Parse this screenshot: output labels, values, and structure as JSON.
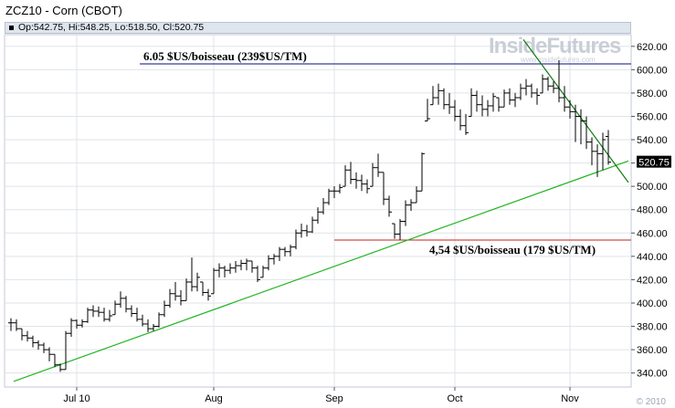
{
  "title": "ZCZ10 - Corn (CBOT)",
  "ohlc_text": "Op:542.75, Hi:548.25, Lo:518.50, Cl:520.75",
  "watermark": {
    "main": "InsideFutures",
    "sub": "www.insidefutures.com"
  },
  "footer": "© 2010",
  "colors": {
    "background": "#ffffff",
    "grid": "#dfe3ea",
    "bars": "#000000",
    "last_box": "#000000",
    "uptrend": "#22b522",
    "downtrend": "#117a11",
    "resistance": "#0a0a8c",
    "support": "#c81e1e"
  },
  "chart_data": {
    "type": "ohlc",
    "title": "ZCZ10 - Corn (CBOT)",
    "x_labels": [
      "Jul 10",
      "Aug",
      "Sep",
      "Oct",
      "Nov"
    ],
    "y_ticks": [
      340,
      360,
      380,
      400,
      420,
      440,
      460,
      480,
      500,
      520,
      540,
      560,
      580,
      600,
      620
    ],
    "ylim": [
      328,
      630
    ],
    "grid": true,
    "last_price_label": "520.75",
    "last": {
      "open": 542.75,
      "high": 548.25,
      "low": 518.5,
      "close": 520.75
    },
    "month_start_index": {
      "Jul 10": 12,
      "Aug": 37,
      "Sep": 59,
      "Oct": 81,
      "Nov": 102
    },
    "bars": [
      {
        "h": 387,
        "l": 376,
        "c": 383
      },
      {
        "h": 386,
        "l": 376,
        "c": 378
      },
      {
        "h": 378,
        "l": 368,
        "c": 372
      },
      {
        "h": 376,
        "l": 367,
        "c": 370
      },
      {
        "h": 372,
        "l": 362,
        "c": 366
      },
      {
        "h": 368,
        "l": 360,
        "c": 364
      },
      {
        "h": 366,
        "l": 357,
        "c": 360
      },
      {
        "h": 362,
        "l": 350,
        "c": 356
      },
      {
        "h": 356,
        "l": 345,
        "c": 347
      },
      {
        "h": 348,
        "l": 341,
        "c": 343
      },
      {
        "h": 376,
        "l": 343,
        "c": 374
      },
      {
        "h": 387,
        "l": 371,
        "c": 385
      },
      {
        "h": 386,
        "l": 378,
        "c": 381
      },
      {
        "h": 386,
        "l": 379,
        "c": 384
      },
      {
        "h": 396,
        "l": 383,
        "c": 394
      },
      {
        "h": 398,
        "l": 388,
        "c": 393
      },
      {
        "h": 397,
        "l": 388,
        "c": 392
      },
      {
        "h": 396,
        "l": 384,
        "c": 386
      },
      {
        "h": 394,
        "l": 384,
        "c": 389
      },
      {
        "h": 402,
        "l": 390,
        "c": 399
      },
      {
        "h": 410,
        "l": 396,
        "c": 404
      },
      {
        "h": 406,
        "l": 392,
        "c": 395
      },
      {
        "h": 398,
        "l": 388,
        "c": 391
      },
      {
        "h": 396,
        "l": 384,
        "c": 386
      },
      {
        "h": 390,
        "l": 380,
        "c": 382
      },
      {
        "h": 386,
        "l": 375,
        "c": 378
      },
      {
        "h": 382,
        "l": 376,
        "c": 380
      },
      {
        "h": 392,
        "l": 379,
        "c": 390
      },
      {
        "h": 402,
        "l": 388,
        "c": 398
      },
      {
        "h": 412,
        "l": 396,
        "c": 408
      },
      {
        "h": 418,
        "l": 402,
        "c": 406
      },
      {
        "h": 411,
        "l": 398,
        "c": 402
      },
      {
        "h": 421,
        "l": 402,
        "c": 418
      },
      {
        "h": 439,
        "l": 410,
        "c": 414
      },
      {
        "h": 426,
        "l": 410,
        "c": 422
      },
      {
        "h": 418,
        "l": 406,
        "c": 409
      },
      {
        "h": 412,
        "l": 402,
        "c": 406
      },
      {
        "h": 430,
        "l": 408,
        "c": 428
      },
      {
        "h": 434,
        "l": 422,
        "c": 430
      },
      {
        "h": 432,
        "l": 422,
        "c": 428
      },
      {
        "h": 434,
        "l": 425,
        "c": 430
      },
      {
        "h": 436,
        "l": 426,
        "c": 432
      },
      {
        "h": 437,
        "l": 428,
        "c": 434
      },
      {
        "h": 438,
        "l": 428,
        "c": 436
      },
      {
        "h": 436,
        "l": 426,
        "c": 430
      },
      {
        "h": 432,
        "l": 418,
        "c": 420
      },
      {
        "h": 432,
        "l": 422,
        "c": 430
      },
      {
        "h": 441,
        "l": 428,
        "c": 438
      },
      {
        "h": 442,
        "l": 433,
        "c": 440
      },
      {
        "h": 448,
        "l": 436,
        "c": 446
      },
      {
        "h": 448,
        "l": 440,
        "c": 444
      },
      {
        "h": 450,
        "l": 440,
        "c": 448
      },
      {
        "h": 463,
        "l": 446,
        "c": 460
      },
      {
        "h": 468,
        "l": 456,
        "c": 462
      },
      {
        "h": 467,
        "l": 457,
        "c": 461
      },
      {
        "h": 474,
        "l": 460,
        "c": 471
      },
      {
        "h": 482,
        "l": 468,
        "c": 478
      },
      {
        "h": 490,
        "l": 476,
        "c": 486
      },
      {
        "h": 498,
        "l": 484,
        "c": 496
      },
      {
        "h": 500,
        "l": 490,
        "c": 496
      },
      {
        "h": 502,
        "l": 494,
        "c": 499
      },
      {
        "h": 518,
        "l": 500,
        "c": 514
      },
      {
        "h": 521,
        "l": 502,
        "c": 506
      },
      {
        "h": 512,
        "l": 498,
        "c": 505
      },
      {
        "h": 510,
        "l": 496,
        "c": 502
      },
      {
        "h": 506,
        "l": 494,
        "c": 498
      },
      {
        "h": 520,
        "l": 500,
        "c": 516
      },
      {
        "h": 528,
        "l": 508,
        "c": 512
      },
      {
        "h": 512,
        "l": 484,
        "c": 489
      },
      {
        "h": 492,
        "l": 474,
        "c": 478
      },
      {
        "h": 468,
        "l": 455,
        "c": 459
      },
      {
        "h": 472,
        "l": 454,
        "c": 470
      },
      {
        "h": 488,
        "l": 466,
        "c": 484
      },
      {
        "h": 489,
        "l": 479,
        "c": 486
      },
      {
        "h": 500,
        "l": 486,
        "c": 496
      },
      {
        "h": 529,
        "l": 496,
        "c": 528
      },
      {
        "h": 575,
        "l": 556,
        "c": 558
      },
      {
        "h": 586,
        "l": 570,
        "c": 576
      },
      {
        "h": 588,
        "l": 570,
        "c": 582
      },
      {
        "h": 584,
        "l": 566,
        "c": 570
      },
      {
        "h": 580,
        "l": 562,
        "c": 568
      },
      {
        "h": 574,
        "l": 556,
        "c": 560
      },
      {
        "h": 566,
        "l": 548,
        "c": 552
      },
      {
        "h": 562,
        "l": 544,
        "c": 546
      },
      {
        "h": 584,
        "l": 560,
        "c": 578
      },
      {
        "h": 582,
        "l": 564,
        "c": 570
      },
      {
        "h": 578,
        "l": 560,
        "c": 566
      },
      {
        "h": 574,
        "l": 560,
        "c": 569
      },
      {
        "h": 580,
        "l": 564,
        "c": 577
      },
      {
        "h": 576,
        "l": 564,
        "c": 568
      },
      {
        "h": 583,
        "l": 568,
        "c": 580
      },
      {
        "h": 584,
        "l": 570,
        "c": 574
      },
      {
        "h": 580,
        "l": 568,
        "c": 576
      },
      {
        "h": 588,
        "l": 574,
        "c": 584
      },
      {
        "h": 592,
        "l": 578,
        "c": 586
      },
      {
        "h": 588,
        "l": 576,
        "c": 580
      },
      {
        "h": 584,
        "l": 570,
        "c": 578
      },
      {
        "h": 596,
        "l": 580,
        "c": 592
      },
      {
        "h": 594,
        "l": 582,
        "c": 586
      },
      {
        "h": 590,
        "l": 580,
        "c": 584
      },
      {
        "h": 608,
        "l": 572,
        "c": 576
      },
      {
        "h": 586,
        "l": 564,
        "c": 568
      },
      {
        "h": 574,
        "l": 558,
        "c": 564
      },
      {
        "h": 570,
        "l": 538,
        "c": 560
      },
      {
        "h": 566,
        "l": 536,
        "c": 556
      },
      {
        "h": 560,
        "l": 532,
        "c": 538
      },
      {
        "h": 542,
        "l": 518,
        "c": 530
      },
      {
        "h": 536,
        "l": 508,
        "c": 528
      },
      {
        "h": 546,
        "l": 514,
        "c": 540
      },
      {
        "h": 548.25,
        "l": 518.5,
        "c": 520.75
      }
    ],
    "annotations": [
      {
        "type": "horizontal",
        "name": "resistance",
        "y": 605,
        "label": "6.05 $US/boisseau (239$US/TM)"
      },
      {
        "type": "horizontal",
        "name": "support",
        "y": 454,
        "label": "4,54 $US/boisseau (179 $US/TM)"
      }
    ],
    "trendlines": [
      {
        "name": "uptrend",
        "from": {
          "bar": 0,
          "y": 332
        },
        "to": {
          "bar": 111,
          "y": 519
        }
      },
      {
        "name": "downtrend",
        "from": {
          "bar": 93,
          "y": 629
        },
        "to": {
          "bar": 111,
          "y": 514
        }
      }
    ]
  }
}
